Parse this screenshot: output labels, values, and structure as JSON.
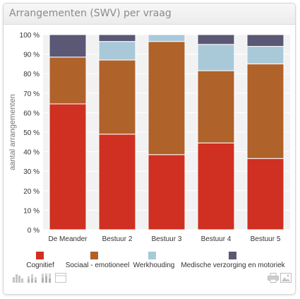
{
  "panel": {
    "title": "Arrangementen (SWV) per vraag"
  },
  "toolbar": {
    "left_icons": [
      "bar-chart-icon",
      "stacked-bar-icon",
      "percent-stacked-bar-icon",
      "table-icon"
    ],
    "right_icons": [
      "print-icon",
      "image-export-icon"
    ]
  },
  "colors": {
    "Cognitief": "#cf3021",
    "Sociaal - emotioneel": "#b0622b",
    "Werkhouding": "#a9c9d9",
    "Medische verzorging en motoriek": "#5a5874",
    "plot_bg": "#f2f2f2",
    "gridline": "#ffffff",
    "text": "#333333",
    "axis_label": "#777777"
  },
  "chart_data": {
    "type": "bar",
    "stacked": "percent",
    "title": "",
    "xlabel": "",
    "ylabel": "aantal arrangementen",
    "categories": [
      "De Meander",
      "Bestuur 2",
      "Bestuur 3",
      "Bestuur 4",
      "Bestuur 5"
    ],
    "series": [
      {
        "name": "Cognitief",
        "values": [
          64.5,
          49,
          38.5,
          44.5,
          36.5
        ]
      },
      {
        "name": "Sociaal - emotioneel",
        "values": [
          24,
          38,
          58,
          37,
          48.5
        ]
      },
      {
        "name": "Werkhouding",
        "values": [
          0,
          9.5,
          3.5,
          13.5,
          9
        ]
      },
      {
        "name": "Medische verzorging en motoriek",
        "values": [
          11.5,
          3.5,
          0,
          5,
          6
        ]
      }
    ],
    "ylim": [
      0,
      100
    ],
    "yticks": [
      "0 %",
      "10 %",
      "20 %",
      "30 %",
      "40 %",
      "50 %",
      "60 %",
      "70 %",
      "80 %",
      "90 %",
      "100 %"
    ],
    "grid": true,
    "legend_position": "bottom"
  }
}
